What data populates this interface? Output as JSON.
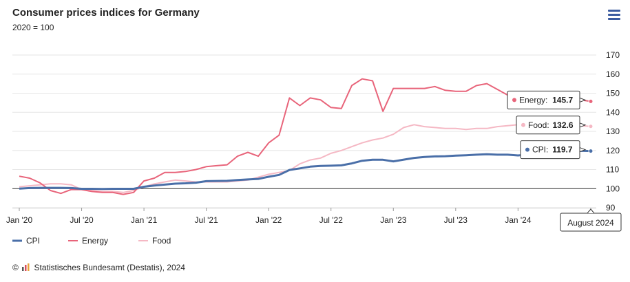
{
  "header": {
    "title": "Consumer prices indices for Germany",
    "subtitle": "2020 = 100",
    "menu_icon": "hamburger-menu-icon"
  },
  "footer": {
    "copyright_symbol": "©",
    "credit": "Statistisches Bundesamt (Destatis), 2024"
  },
  "colors": {
    "cpi": "#4a6fa8",
    "energy": "#e8647a",
    "food": "#f5b8c4",
    "grid": "#e6e6e6",
    "baseline": "#333333"
  },
  "tooltip": {
    "x_label": "August 2024",
    "items": [
      {
        "series": "Energy",
        "label": "Energy:",
        "value": "145.7"
      },
      {
        "series": "Food",
        "label": "Food:",
        "value": "132.6"
      },
      {
        "series": "CPI",
        "label": "CPI:",
        "value": "119.7"
      }
    ]
  },
  "chart_data": {
    "type": "line",
    "title": "Consumer prices indices for Germany",
    "subtitle": "2020 = 100",
    "xlabel": "",
    "ylabel": "",
    "ylim": [
      90,
      170
    ],
    "y_ticks": [
      "90",
      "100",
      "110",
      "120",
      "130",
      "140",
      "150",
      "160",
      "170"
    ],
    "x_ticks": [
      "Jan '20",
      "Jul '20",
      "Jan '21",
      "Jul '21",
      "Jan '22",
      "Jul '22",
      "Jan '23",
      "Jul '23",
      "Jan '24"
    ],
    "x_tick_month_index": [
      0,
      6,
      12,
      18,
      24,
      30,
      36,
      42,
      48
    ],
    "x_start": "Jan 2020",
    "x_end": "Aug 2024",
    "baseline": 100,
    "grid": true,
    "legend_position": "bottom-left",
    "series": [
      {
        "name": "CPI",
        "values": [
          100.0,
          100.3,
          100.4,
          100.4,
          100.4,
          100.3,
          99.9,
          99.9,
          99.8,
          99.9,
          99.9,
          99.9,
          101.0,
          101.6,
          102.1,
          102.6,
          102.8,
          103.1,
          103.9,
          104.0,
          104.1,
          104.5,
          104.8,
          105.1,
          106.2,
          107.2,
          109.8,
          110.6,
          111.5,
          111.9,
          112.0,
          112.2,
          113.2,
          114.6,
          115.1,
          115.1,
          114.3,
          115.2,
          116.1,
          116.6,
          116.9,
          117.0,
          117.3,
          117.5,
          117.8,
          118.0,
          117.8,
          117.8,
          117.4,
          117.9,
          118.6,
          119.2,
          118.8,
          119.2,
          119.8,
          119.7
        ]
      },
      {
        "name": "Energy",
        "values": [
          106.5,
          105.5,
          103.0,
          99.0,
          97.5,
          99.5,
          99.5,
          98.5,
          98.0,
          98.0,
          97.0,
          98.0,
          104.0,
          105.5,
          108.5,
          108.5,
          109.0,
          110.0,
          111.5,
          112.0,
          112.5,
          117.0,
          119.0,
          117.0,
          124.0,
          128.0,
          147.5,
          143.5,
          147.5,
          146.5,
          142.5,
          142.0,
          154.0,
          157.5,
          156.5,
          140.5,
          152.5,
          152.5,
          152.5,
          152.5,
          153.5,
          151.5,
          151.0,
          151.0,
          154.0,
          155.0,
          152.0,
          149.0,
          146.0,
          146.5,
          148.0,
          149.0,
          147.5,
          146.5,
          146.5,
          145.7
        ]
      },
      {
        "name": "Food",
        "values": [
          101.0,
          101.5,
          102.0,
          102.5,
          102.5,
          102.0,
          99.5,
          99.0,
          98.5,
          98.5,
          98.0,
          99.0,
          101.0,
          102.5,
          103.5,
          104.5,
          104.0,
          103.5,
          103.5,
          103.5,
          103.5,
          104.0,
          104.5,
          106.0,
          107.5,
          108.5,
          109.5,
          113.0,
          115.0,
          116.0,
          118.5,
          120.0,
          122.0,
          124.0,
          125.5,
          126.5,
          128.5,
          132.0,
          133.5,
          132.5,
          132.0,
          131.5,
          131.5,
          131.0,
          131.5,
          131.5,
          132.5,
          133.0,
          133.5,
          133.0,
          133.0,
          134.5,
          134.0,
          133.5,
          133.0,
          132.6
        ]
      }
    ]
  }
}
